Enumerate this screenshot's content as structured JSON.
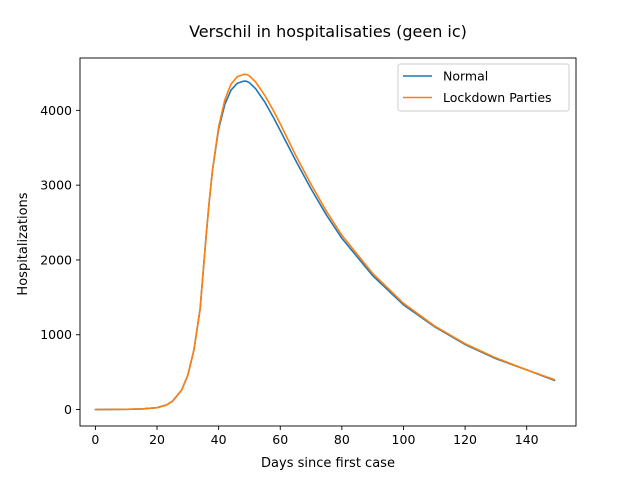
{
  "chart_data": {
    "type": "line",
    "title": "Verschil in hospitalisaties (geen ic)",
    "xlabel": "Days since first case",
    "ylabel": "Hospitalizations",
    "xlim": [
      -5,
      156
    ],
    "ylim": [
      -220,
      4700
    ],
    "xticks": [
      0,
      20,
      40,
      60,
      80,
      100,
      120,
      140
    ],
    "yticks": [
      0,
      1000,
      2000,
      3000,
      4000
    ],
    "grid": false,
    "legend_position": "top-right",
    "series": [
      {
        "name": "Normal",
        "color": "#1f77b4",
        "x": [
          0,
          10,
          15,
          20,
          23,
          25,
          28,
          30,
          32,
          34,
          35,
          36,
          37,
          38,
          40,
          42,
          44,
          46,
          48,
          49,
          50,
          52,
          55,
          58,
          60,
          65,
          70,
          75,
          80,
          90,
          100,
          110,
          120,
          130,
          140,
          149
        ],
        "y": [
          0,
          3,
          8,
          25,
          60,
          110,
          260,
          460,
          800,
          1350,
          1850,
          2350,
          2800,
          3200,
          3750,
          4080,
          4270,
          4360,
          4390,
          4390,
          4370,
          4290,
          4110,
          3890,
          3730,
          3330,
          2950,
          2600,
          2290,
          1790,
          1400,
          1110,
          870,
          680,
          530,
          390
        ]
      },
      {
        "name": "Lockdown Parties",
        "color": "#ff7f0e",
        "x": [
          0,
          10,
          15,
          20,
          23,
          25,
          28,
          30,
          32,
          34,
          35,
          36,
          37,
          38,
          40,
          42,
          44,
          46,
          48,
          49,
          50,
          52,
          55,
          58,
          60,
          65,
          70,
          75,
          80,
          90,
          100,
          110,
          120,
          130,
          140,
          149
        ],
        "y": [
          0,
          3,
          8,
          25,
          60,
          110,
          260,
          460,
          800,
          1350,
          1850,
          2350,
          2800,
          3200,
          3780,
          4140,
          4350,
          4450,
          4480,
          4480,
          4460,
          4380,
          4200,
          3980,
          3820,
          3400,
          3010,
          2650,
          2330,
          1820,
          1420,
          1120,
          880,
          690,
          530,
          400
        ]
      }
    ]
  }
}
